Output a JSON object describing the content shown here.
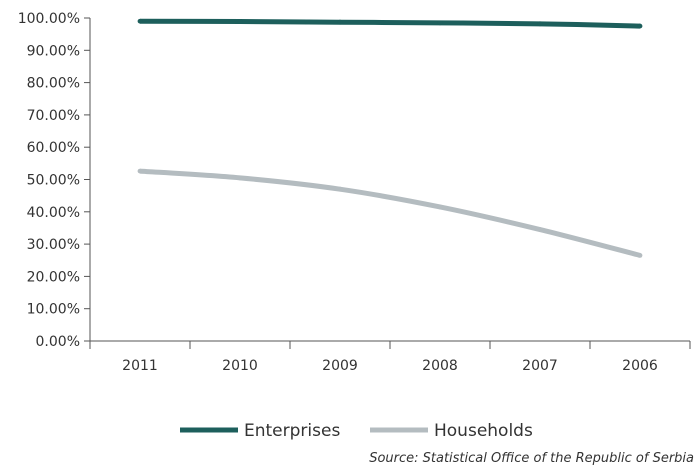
{
  "chart_data": {
    "type": "line",
    "categories": [
      "2011",
      "2010",
      "2009",
      "2008",
      "2007",
      "2006"
    ],
    "series": [
      {
        "name": "Enterprises",
        "values": [
          99.0,
          98.9,
          98.7,
          98.5,
          98.2,
          97.5
        ],
        "color": "#1d5f5c"
      },
      {
        "name": "Households",
        "values": [
          52.6,
          50.5,
          47.0,
          41.5,
          34.5,
          26.5
        ],
        "color": "#b4bcc0"
      }
    ],
    "y_ticks": [
      "100.00%",
      "90.00%",
      "80.00%",
      "70.00%",
      "60.00%",
      "50.00%",
      "40.00%",
      "30.00%",
      "20.00%",
      "10.00%",
      "0.00%"
    ],
    "ylim": [
      0,
      100
    ],
    "grid": false,
    "legend_position": "bottom",
    "source_note": "Source: Statistical Office of the Republic of Serbia"
  }
}
